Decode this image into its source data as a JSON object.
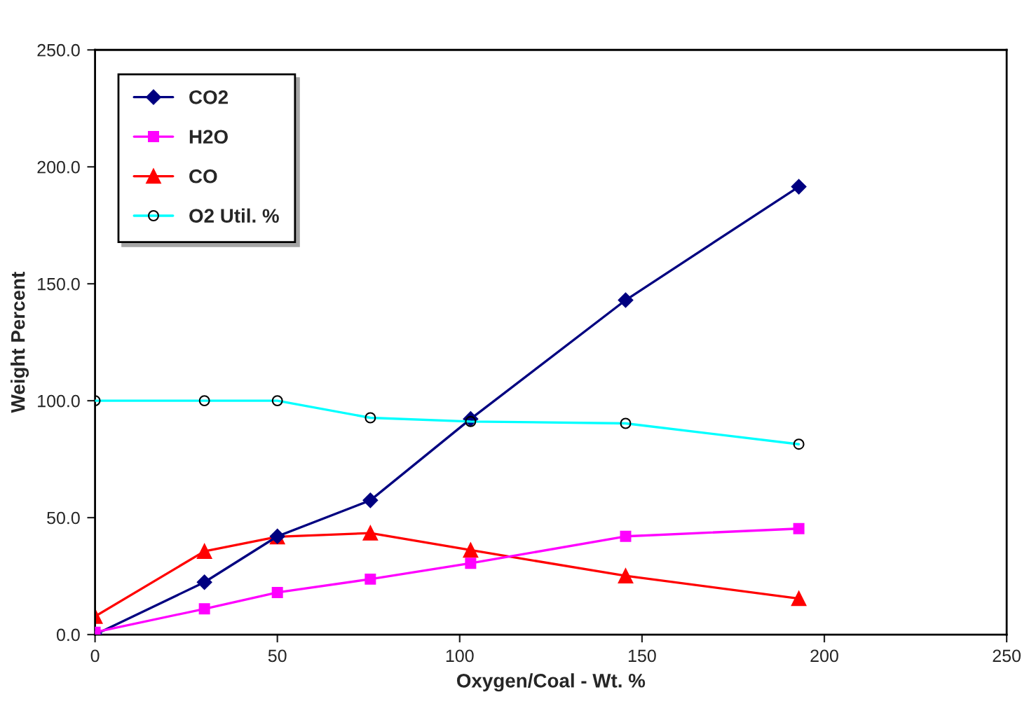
{
  "chart_data": {
    "type": "line",
    "xlabel": "Oxygen/Coal - Wt. %",
    "ylabel": "Weight Percent",
    "x": [
      0,
      30,
      50,
      75.5,
      103,
      145.5,
      193
    ],
    "series": [
      {
        "name": "CO2",
        "color": "#000080",
        "marker": "diamond",
        "values": [
          0,
          22.4,
          42,
          57.4,
          92.2,
          143,
          191.5
        ]
      },
      {
        "name": "H2O",
        "color": "#ff00ff",
        "marker": "square",
        "values": [
          1,
          11,
          18,
          23.7,
          30.5,
          42,
          45.3
        ]
      },
      {
        "name": "CO",
        "color": "#ff0000",
        "marker": "triangle",
        "values": [
          7.8,
          35.6,
          41.8,
          43.4,
          36.1,
          25.1,
          15.4
        ]
      },
      {
        "name": "O2 Util. %",
        "color": "#00ffff",
        "marker": "circle",
        "values": [
          100,
          100,
          100,
          92.7,
          91.1,
          90.3,
          81.4
        ]
      }
    ],
    "xlim": [
      0,
      250
    ],
    "xticks": [
      0,
      50,
      100,
      150,
      200,
      250
    ],
    "ylim": [
      0,
      250
    ],
    "yticks": [
      {
        "value": 0,
        "label": "0.0"
      },
      {
        "value": 50,
        "label": "50.0"
      },
      {
        "value": 100,
        "label": "100.0"
      },
      {
        "value": 150,
        "label": "150.0"
      },
      {
        "value": 200,
        "label": "200.0"
      },
      {
        "value": 250,
        "label": "250.0"
      }
    ],
    "grid": false,
    "legend": "top left"
  }
}
